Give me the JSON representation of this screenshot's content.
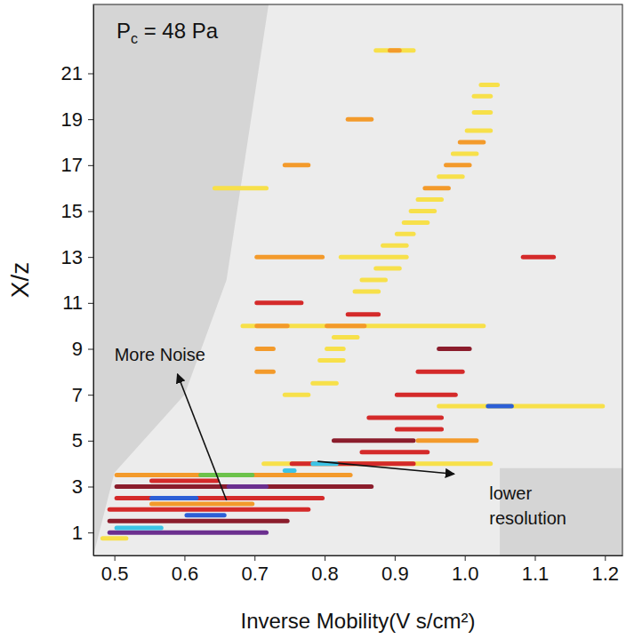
{
  "chart_data": {
    "type": "segments",
    "title": "Pc = 48 Pa",
    "x_label": "Inverse Mobility(V s/cm²)",
    "y_label": "X/z",
    "xlim": [
      0.47,
      1.225
    ],
    "ylim": [
      0,
      24
    ],
    "xticks": [
      0.5,
      0.6,
      0.7,
      0.8,
      0.9,
      {
        "value": 1,
        "label": "1.0"
      },
      1.1,
      1.2
    ],
    "yticks": [
      1,
      3,
      5,
      7,
      9,
      11,
      13,
      15,
      17,
      19,
      21
    ],
    "noise_region": {
      "x": [
        0.72,
        0.66,
        0.6,
        0.5,
        0.47,
        1.05,
        1.05,
        1.225,
        1.225
      ],
      "y": [
        24,
        12,
        7,
        3.6,
        0,
        0,
        3.8,
        3.8,
        24
      ]
    },
    "x": [
      0.87,
      0.89,
      1.02,
      1.01,
      0.83,
      1.01,
      1.0,
      0.99,
      0.74,
      0.98,
      0.97,
      0.96,
      0.64,
      0.94,
      0.93,
      0.92,
      0.91,
      0.9,
      0.88,
      0.7,
      0.82,
      1.08,
      0.87,
      0.85,
      0.84,
      0.7,
      0.83,
      0.68,
      0.7,
      0.8,
      0.81,
      0.7,
      0.8,
      0.96,
      0.79,
      0.7,
      0.93,
      0.78,
      0.74,
      0.9,
      0.96,
      1.03,
      0.86,
      0.9,
      0.81,
      0.93,
      0.85,
      0.71,
      0.75,
      0.78,
      0.5,
      0.62,
      0.55,
      0.5,
      0.66,
      0.5,
      0.55,
      0.49,
      0.55,
      0.49,
      0.6,
      0.49,
      0.5,
      0.48,
      0.74
    ],
    "x_end": [
      0.93,
      0.91,
      1.05,
      1.04,
      0.87,
      1.04,
      1.04,
      1.03,
      0.78,
      1.02,
      1.01,
      1.0,
      0.72,
      0.98,
      0.97,
      0.96,
      0.95,
      0.93,
      0.92,
      0.8,
      0.92,
      1.13,
      0.91,
      0.89,
      0.88,
      0.77,
      0.88,
      1.03,
      0.75,
      0.86,
      0.85,
      0.73,
      0.83,
      1.01,
      0.83,
      0.73,
      1.0,
      0.82,
      0.78,
      0.99,
      1.2,
      1.07,
      0.97,
      0.97,
      0.93,
      1.02,
      0.95,
      1.04,
      0.93,
      0.82,
      0.84,
      0.7,
      0.65,
      0.87,
      0.72,
      0.8,
      0.62,
      0.78,
      0.7,
      0.75,
      0.66,
      0.72,
      0.57,
      0.52,
      0.76
    ],
    "y": [
      22,
      22,
      20.5,
      20,
      19,
      19.3,
      18.5,
      18,
      17,
      17.5,
      17,
      16.5,
      16,
      16,
      15.5,
      15,
      14.5,
      14,
      13.5,
      13,
      13,
      13,
      12.5,
      12,
      11.5,
      11,
      10.5,
      10,
      10,
      10,
      9.5,
      9,
      9,
      9,
      8.5,
      8,
      8,
      7.5,
      7,
      7,
      6.5,
      6.5,
      6,
      5.5,
      5,
      5,
      4.5,
      4,
      4,
      4,
      3.5,
      3.5,
      3.25,
      3,
      3,
      2.5,
      2.5,
      2,
      2.25,
      1.5,
      1.75,
      1,
      1.2,
      0.75,
      3.7
    ],
    "colors": [
      "#f7e04a",
      "#f39a2b",
      "#f7e04a",
      "#f7e04a",
      "#f39a2b",
      "#f7e04a",
      "#f7e04a",
      "#f39a2b",
      "#f39a2b",
      "#f7e04a",
      "#f39a2b",
      "#f7e04a",
      "#f7e04a",
      "#f39a2b",
      "#f7e04a",
      "#f7e04a",
      "#f7e04a",
      "#f7e04a",
      "#f7e04a",
      "#f39a2b",
      "#f7e04a",
      "#d42a2a",
      "#f7e04a",
      "#f7e04a",
      "#f7e04a",
      "#d42a2a",
      "#d42a2a",
      "#f7e04a",
      "#f39a2b",
      "#f39a2b",
      "#f7e04a",
      "#f39a2b",
      "#f7e04a",
      "#8b1d2c",
      "#f7e04a",
      "#f39a2b",
      "#d42a2a",
      "#f7e04a",
      "#f7e04a",
      "#d42a2a",
      "#f7e04a",
      "#2c5fd6",
      "#d42a2a",
      "#d42a2a",
      "#8b1d2c",
      "#f39a2b",
      "#d42a2a",
      "#f7e04a",
      "#d42a2a",
      "#3cc4e6",
      "#f39a2b",
      "#6cc24a",
      "#d42a2a",
      "#8b1d2c",
      "#6b2f8f",
      "#d42a2a",
      "#2c5fd6",
      "#d42a2a",
      "#f39a2b",
      "#8b1d2c",
      "#2c5fd6",
      "#6b2f8f",
      "#3cc4e6",
      "#f7e04a",
      "#3cc4e6"
    ],
    "annotations": [
      {
        "lines": [
          "More Noise"
        ],
        "x": 0.5,
        "y": 8.7,
        "arrow_from": [
          0.66,
          2.4
        ],
        "arrow_to": [
          0.59,
          7.9
        ]
      },
      {
        "lines": [
          "lower",
          "resolution"
        ],
        "x": 1.035,
        "y": 2.66,
        "arrow_from": [
          0.79,
          4.1
        ],
        "arrow_to": [
          0.985,
          3.55
        ]
      }
    ]
  }
}
